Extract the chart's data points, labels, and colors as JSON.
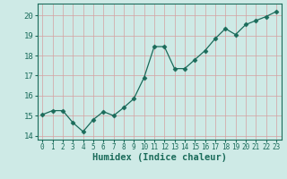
{
  "x": [
    0,
    1,
    2,
    3,
    4,
    5,
    6,
    7,
    8,
    9,
    10,
    11,
    12,
    13,
    14,
    15,
    16,
    17,
    18,
    19,
    20,
    21,
    22,
    23
  ],
  "y": [
    15.05,
    15.25,
    15.25,
    14.65,
    14.2,
    14.8,
    15.2,
    15.0,
    15.4,
    15.85,
    16.9,
    18.45,
    18.45,
    17.35,
    17.35,
    17.8,
    18.25,
    18.85,
    19.35,
    19.05,
    19.55,
    19.75,
    19.95,
    20.2
  ],
  "line_color": "#1a6b5a",
  "marker": "D",
  "marker_size": 2.5,
  "bg_color": "#ceeae6",
  "grid_color": "#b0d8d4",
  "tick_color": "#1a6b5a",
  "xlabel": "Humidex (Indice chaleur)",
  "xlabel_fontsize": 7.5,
  "ylim": [
    13.8,
    20.6
  ],
  "yticks": [
    14,
    15,
    16,
    17,
    18,
    19,
    20
  ],
  "xticks": [
    0,
    1,
    2,
    3,
    4,
    5,
    6,
    7,
    8,
    9,
    10,
    11,
    12,
    13,
    14,
    15,
    16,
    17,
    18,
    19,
    20,
    21,
    22,
    23
  ],
  "xlim": [
    -0.5,
    23.5
  ]
}
